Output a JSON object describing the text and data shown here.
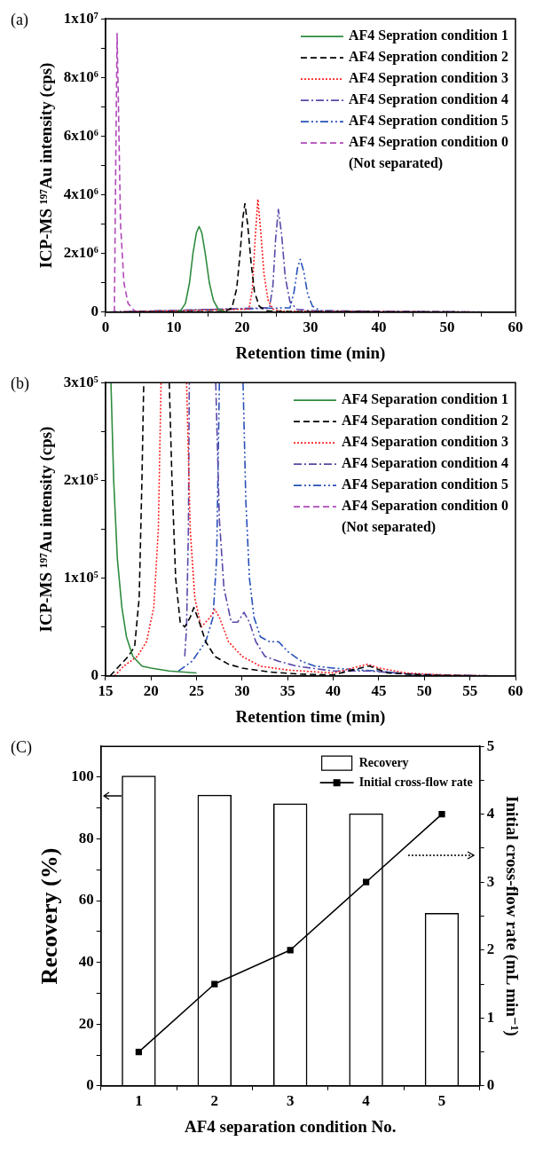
{
  "chart_data": [
    {
      "type": "line",
      "annotations": [
        "(a)"
      ],
      "xlabel": "Retention time (min)",
      "ylabel": "ICP-MS ¹⁹⁷Au intensity (cps)",
      "xlim": [
        0,
        60
      ],
      "xticks": [
        0,
        {
          "value": 5,
          "label": null
        },
        10,
        {
          "value": 15,
          "label": null
        },
        20,
        {
          "value": 25,
          "label": null
        },
        30,
        {
          "value": 35,
          "label": null
        },
        40,
        {
          "value": 45,
          "label": null
        },
        50,
        {
          "value": 55,
          "label": null
        },
        60
      ],
      "ylim": [
        0,
        10000000
      ],
      "yticks": [
        0,
        {
          "value": 1000000,
          "label": null
        },
        {
          "value": 2000000,
          "label": "2x10⁶"
        },
        {
          "value": 3000000,
          "label": null
        },
        {
          "value": 4000000,
          "label": "4x10⁶"
        },
        {
          "value": 5000000,
          "label": null
        },
        {
          "value": 6000000,
          "label": "6x10⁶"
        },
        {
          "value": 7000000,
          "label": null
        },
        {
          "value": 8000000,
          "label": "8x10⁶"
        },
        {
          "value": 9000000,
          "label": null
        },
        {
          "value": 10000000,
          "label": "1x10⁷"
        }
      ],
      "grid": false,
      "legend": "top right",
      "marker": "none",
      "series": [
        {
          "name": "AF4 Sepration condition 1",
          "color": "#2e8b3e",
          "line_style": "solid",
          "x": [
            10.5,
            11,
            11.7,
            12.3,
            12.8,
            13.3,
            13.7,
            14.1,
            14.6,
            15.2,
            15.8,
            16.5,
            17.5
          ],
          "values": [
            20000,
            50000,
            300000,
            1000000,
            2000000,
            2700000,
            2920000,
            2700000,
            2000000,
            1000000,
            400000,
            100000,
            20000
          ]
        },
        {
          "name": "AF4 Sepration condition 2",
          "color": "#000000",
          "line_style": "dashed",
          "x": [
            0.5,
            17.5,
            18.5,
            19.2,
            19.7,
            20.1,
            20.4,
            20.8,
            21.3,
            21.8,
            22.5,
            23.5,
            25,
            57.5
          ],
          "values": [
            0,
            20000,
            150000,
            800000,
            2000000,
            3200000,
            3700000,
            3000000,
            1700000,
            700000,
            200000,
            50000,
            20000,
            0
          ]
        },
        {
          "name": "AF4 Sepration condition 3",
          "color": "#ff2020",
          "line_style": "dotted",
          "x": [
            0.5,
            21,
            21.5,
            21.9,
            22.3,
            22.7,
            23.2,
            23.8,
            24.5,
            26,
            57.5
          ],
          "values": [
            0,
            100000,
            800000,
            2500000,
            3850000,
            2800000,
            1300000,
            400000,
            100000,
            30000,
            0
          ]
        },
        {
          "name": "AF4 Sepration condition 4",
          "color": "#5a48a8",
          "line_style": "dashdot",
          "x": [
            0.5,
            24,
            24.5,
            24.9,
            25.3,
            25.8,
            26.3,
            27,
            28,
            30,
            57.5
          ],
          "values": [
            0,
            150000,
            900000,
            2500000,
            3500000,
            2600000,
            1200000,
            350000,
            100000,
            50000,
            0
          ]
        },
        {
          "name": "AF4 Sepration condition 5",
          "color": "#2850b8",
          "line_style": "dashdotdot",
          "x": [
            0.5,
            27,
            27.6,
            28.1,
            28.5,
            29,
            29.6,
            30.3,
            31.5,
            35,
            57.5
          ],
          "values": [
            0,
            150000,
            700000,
            1500000,
            1800000,
            1400000,
            600000,
            200000,
            50000,
            20000,
            0
          ]
        },
        {
          "name": "AF4 Sepration condition 0\n(Not separated)",
          "color": "#b048b8",
          "line_style": "dashed",
          "x": [
            1.3,
            1.5,
            1.7,
            1.9,
            2.2,
            2.7,
            3.3,
            4.2,
            5,
            57.5
          ],
          "values": [
            0,
            5000000,
            9500000,
            7000000,
            3000000,
            1000000,
            300000,
            50000,
            0,
            0
          ]
        }
      ]
    },
    {
      "type": "line",
      "annotations": [
        "(b)"
      ],
      "xlabel": "Retention time (min)",
      "ylabel": "ICP-MS ¹⁹⁷Au intensity (cps)",
      "xlim": [
        15,
        60
      ],
      "xticks": [
        15,
        20,
        25,
        30,
        35,
        40,
        45,
        50,
        55,
        60
      ],
      "ylim": [
        0,
        300000
      ],
      "yticks": [
        0,
        {
          "value": 50000,
          "label": null
        },
        {
          "value": 100000,
          "label": "1x10⁵"
        },
        {
          "value": 150000,
          "label": null
        },
        {
          "value": 200000,
          "label": "2x10⁵"
        },
        {
          "value": 250000,
          "label": null
        },
        {
          "value": 300000,
          "label": "3x10⁵"
        }
      ],
      "grid": false,
      "legend": "top right",
      "marker": "none",
      "series": [
        {
          "name": "AF4 Separation condition 1",
          "color": "#2e8b3e",
          "line_style": "solid",
          "x": [
            15.6,
            15.9,
            16.3,
            16.8,
            17.3,
            18,
            19,
            20,
            22,
            25
          ],
          "values": [
            300000,
            200000,
            120000,
            70000,
            40000,
            20000,
            10000,
            8000,
            5000,
            3000
          ]
        },
        {
          "name": "AF4 Separation condition 2",
          "color": "#000000",
          "line_style": "dashed",
          "x": [
            15.5,
            16.5,
            17.5,
            18.2,
            18.7,
            19,
            19.2,
            20.5,
            22,
            22.3,
            22.7,
            23.2,
            23.7,
            24.3,
            24.7,
            25.3,
            26,
            27,
            28.5,
            30,
            33,
            36,
            40,
            43.8,
            44,
            46,
            50,
            55,
            57.5
          ],
          "values": [
            0,
            10000,
            20000,
            30000,
            80000,
            200000,
            300000,
            null,
            300000,
            200000,
            100000,
            55000,
            50000,
            60000,
            70000,
            55000,
            35000,
            20000,
            12000,
            8000,
            4000,
            2000,
            1000,
            10000,
            10000,
            3000,
            1000,
            0,
            0
          ]
        },
        {
          "name": "AF4 Separation condition 3",
          "color": "#ff2020",
          "line_style": "dotted",
          "x": [
            16,
            17,
            18.5,
            19.5,
            20.3,
            20.8,
            21.1,
            22.5,
            23.9,
            24.3,
            24.8,
            25.5,
            26.5,
            27,
            27.5,
            28.5,
            30,
            32,
            35,
            40,
            43.8,
            45,
            48,
            52,
            57.5
          ],
          "values": [
            0,
            10000,
            20000,
            35000,
            70000,
            150000,
            300000,
            null,
            300000,
            150000,
            80000,
            50000,
            60000,
            68000,
            60000,
            35000,
            20000,
            10000,
            6000,
            3000,
            12000,
            8000,
            3000,
            1000,
            0
          ]
        },
        {
          "name": "AF4 Separation condition 4",
          "color": "#5a48a8",
          "line_style": "dashdot",
          "x": [
            23.7,
            23.9,
            24.1,
            24.2,
            25.5,
            27.1,
            27.5,
            28,
            28.8,
            29.5,
            30.2,
            30.8,
            31.5,
            32.5,
            34,
            36,
            40,
            44,
            50,
            57.5
          ],
          "values": [
            20000,
            50000,
            150000,
            300000,
            null,
            300000,
            160000,
            90000,
            55000,
            55000,
            65000,
            55000,
            35000,
            20000,
            15000,
            10000,
            5000,
            5000,
            1000,
            0
          ]
        },
        {
          "name": "AF4 Separation condition 5",
          "color": "#2850b8",
          "line_style": "dashdotdot",
          "x": [
            23,
            24.5,
            26,
            26.8,
            27.2,
            27.5,
            28.8,
            30.1,
            30.4,
            30.8,
            31.3,
            32,
            33,
            34,
            35,
            36.5,
            38,
            40,
            43,
            45,
            48,
            52,
            57.5
          ],
          "values": [
            5000,
            15000,
            35000,
            60000,
            120000,
            300000,
            null,
            300000,
            180000,
            100000,
            60000,
            40000,
            35000,
            35000,
            25000,
            15000,
            10000,
            8000,
            6000,
            5000,
            2000,
            1000,
            0
          ]
        },
        {
          "name": "AF4 Separation condition 0\n(Not separated)",
          "color": "#b048b8",
          "line_style": "dashed"
        }
      ]
    },
    {
      "type": "bar",
      "annotations": [
        "(C)"
      ],
      "xlabel": "AF4 separation condition No.",
      "ylabel": "Recovery (%)",
      "y2label": "Initial cross-flow rate (mL min⁻¹)",
      "categories": [
        "1",
        "2",
        "3",
        "4",
        "5"
      ],
      "ylim": [
        0,
        110
      ],
      "yticks": [
        0,
        {
          "value": 10,
          "label": null
        },
        20,
        {
          "value": 30,
          "label": null
        },
        40,
        {
          "value": 50,
          "label": null
        },
        60,
        {
          "value": 70,
          "label": null
        },
        80,
        {
          "value": 90,
          "label": null
        },
        100
      ],
      "y2lim": [
        0,
        5
      ],
      "y2ticks": [
        0,
        {
          "value": 0.5,
          "label": null
        },
        1,
        {
          "value": 1.5,
          "label": null
        },
        2,
        {
          "value": 2.5,
          "label": null
        },
        3,
        {
          "value": 3.5,
          "label": null
        },
        4,
        {
          "value": 4.5,
          "label": null
        },
        5
      ],
      "grid": false,
      "legend": "top right",
      "marker": "square",
      "series": [
        {
          "name": "Recovery",
          "type": "bar",
          "color": "#000000",
          "values": [
            100.5,
            94.3,
            91.5,
            88.3,
            56
          ]
        },
        {
          "name": "Initial cross-flow rate",
          "type": "line",
          "axis": "y2",
          "color": "#000000",
          "values": [
            0.5,
            1.5,
            2,
            3,
            4
          ]
        }
      ]
    }
  ]
}
